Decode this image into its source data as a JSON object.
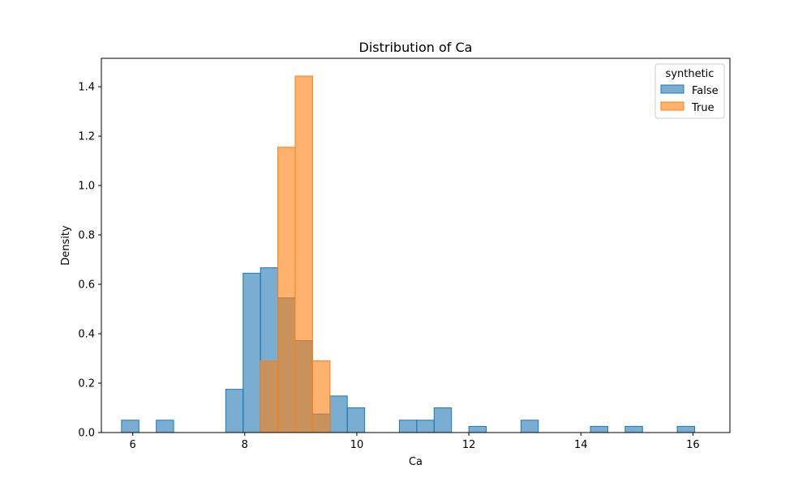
{
  "chart_data": {
    "type": "histogram",
    "title": "Distribution of Ca",
    "xlabel": "Ca",
    "ylabel": "Density",
    "xlim": [
      5.44,
      16.66
    ],
    "ylim": [
      0,
      1.515
    ],
    "xticks": [
      6,
      8,
      10,
      12,
      14,
      16
    ],
    "yticks": [
      0.0,
      0.2,
      0.4,
      0.6,
      0.8,
      1.0,
      1.2,
      1.4
    ],
    "grid": false,
    "legend": {
      "title": "synthetic",
      "placement": "top-right"
    },
    "series": [
      {
        "name": "False",
        "color": "#1f77b4",
        "bins": [
          {
            "x0": 5.8,
            "x1": 6.11,
            "y": 0.05
          },
          {
            "x0": 6.42,
            "x1": 6.73,
            "y": 0.05
          },
          {
            "x0": 7.66,
            "x1": 7.97,
            "y": 0.175
          },
          {
            "x0": 7.97,
            "x1": 8.28,
            "y": 0.645
          },
          {
            "x0": 8.28,
            "x1": 8.59,
            "y": 0.667
          },
          {
            "x0": 8.59,
            "x1": 8.9,
            "y": 0.545
          },
          {
            "x0": 8.9,
            "x1": 9.21,
            "y": 0.372
          },
          {
            "x0": 9.21,
            "x1": 9.52,
            "y": 0.075
          },
          {
            "x0": 9.52,
            "x1": 9.83,
            "y": 0.148
          },
          {
            "x0": 9.83,
            "x1": 10.14,
            "y": 0.1
          },
          {
            "x0": 10.76,
            "x1": 11.07,
            "y": 0.05
          },
          {
            "x0": 11.07,
            "x1": 11.38,
            "y": 0.05
          },
          {
            "x0": 11.38,
            "x1": 11.69,
            "y": 0.1
          },
          {
            "x0": 12.0,
            "x1": 12.31,
            "y": 0.025
          },
          {
            "x0": 12.93,
            "x1": 13.24,
            "y": 0.05
          },
          {
            "x0": 14.17,
            "x1": 14.48,
            "y": 0.025
          },
          {
            "x0": 14.79,
            "x1": 15.1,
            "y": 0.025
          },
          {
            "x0": 15.72,
            "x1": 16.03,
            "y": 0.025
          }
        ]
      },
      {
        "name": "True",
        "color": "#ff7f0e",
        "bins": [
          {
            "x0": 8.28,
            "x1": 8.59,
            "y": 0.29
          },
          {
            "x0": 8.59,
            "x1": 8.9,
            "y": 1.155
          },
          {
            "x0": 8.9,
            "x1": 9.21,
            "y": 1.443
          },
          {
            "x0": 9.21,
            "x1": 9.52,
            "y": 0.29
          }
        ]
      }
    ]
  }
}
